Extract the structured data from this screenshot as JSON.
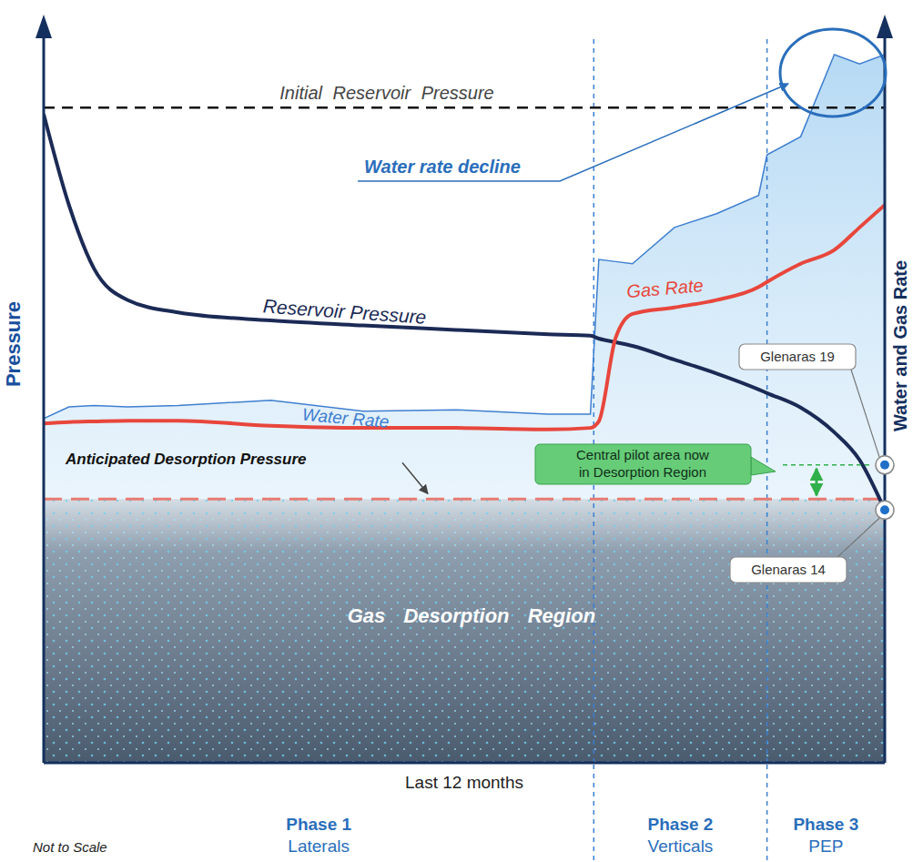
{
  "chart_data": {
    "type": "line",
    "x_label": "Last 12 months",
    "y_label": "Pressure",
    "y2_label": "Water and Gas Rate",
    "xlim": [
      0,
      100
    ],
    "ylim": [
      0,
      100
    ],
    "y2lim": [
      0,
      100
    ],
    "tick_labels": false,
    "x": [
      0,
      3,
      6,
      10,
      16,
      27,
      38,
      49,
      60,
      65,
      66,
      68,
      70,
      75,
      80,
      85,
      86,
      90,
      94,
      97,
      100
    ],
    "series": [
      {
        "name": "Reservoir Pressure",
        "color": "#1b2a55",
        "values": [
          89.3,
          76.8,
          68.0,
          63.7,
          62.0,
          60.9,
          60.2,
          59.6,
          59.0,
          58.8,
          58.4,
          57.9,
          57.4,
          55.5,
          53.6,
          51.4,
          50.9,
          48.9,
          45.5,
          41.7,
          34.8
        ]
      },
      {
        "name": "Gas Rate",
        "color": "#e8463c",
        "axis": "y2",
        "values": [
          46.7,
          46.9,
          47.0,
          47.1,
          47.1,
          46.4,
          46.1,
          46.1,
          45.9,
          46.1,
          47.0,
          58.5,
          61.8,
          62.7,
          63.7,
          65.5,
          66.2,
          68.7,
          70.6,
          73.7,
          76.8
        ]
      },
      {
        "name": "Water Rate",
        "color": "#3f7fd0",
        "axis": "y2",
        "type": "area",
        "values": [
          47.4,
          49.0,
          49.2,
          49.0,
          49.2,
          49.9,
          48.4,
          48.6,
          48.0,
          48.0,
          69.3,
          69.0,
          68.7,
          73.7,
          75.6,
          78.1,
          83.7,
          86.2,
          97.5,
          96.2,
          97.5
        ]
      }
    ],
    "reference_lines": [
      {
        "label": "Initial Reservoir Pressure",
        "value": 90.2,
        "color": "#111111",
        "line_style": "dashed"
      },
      {
        "label": "Anticipated Desorption Pressure",
        "value": 36.3,
        "color": "#e77b73",
        "line_style": "dashed"
      }
    ],
    "region": {
      "label": "Gas Desorption Region"
    },
    "points": [
      {
        "label": "Glenaras 19",
        "x": 100,
        "value": 41.0
      },
      {
        "label": "Glenaras 14",
        "x": 100,
        "value": 34.8
      }
    ],
    "annotations": [
      {
        "text": "Water rate decline"
      },
      {
        "text": "Central pilot area now in Desorption Region"
      }
    ],
    "phases": [
      {
        "label": "Phase 1",
        "sublabel": "Laterals",
        "start": 0,
        "end": 65.4
      },
      {
        "label": "Phase 2",
        "sublabel": "Verticals",
        "start": 65.4,
        "end": 86.0
      },
      {
        "label": "Phase 3",
        "sublabel": "PEP",
        "start": 86.0,
        "end": 100
      }
    ],
    "note": "Not to Scale"
  }
}
